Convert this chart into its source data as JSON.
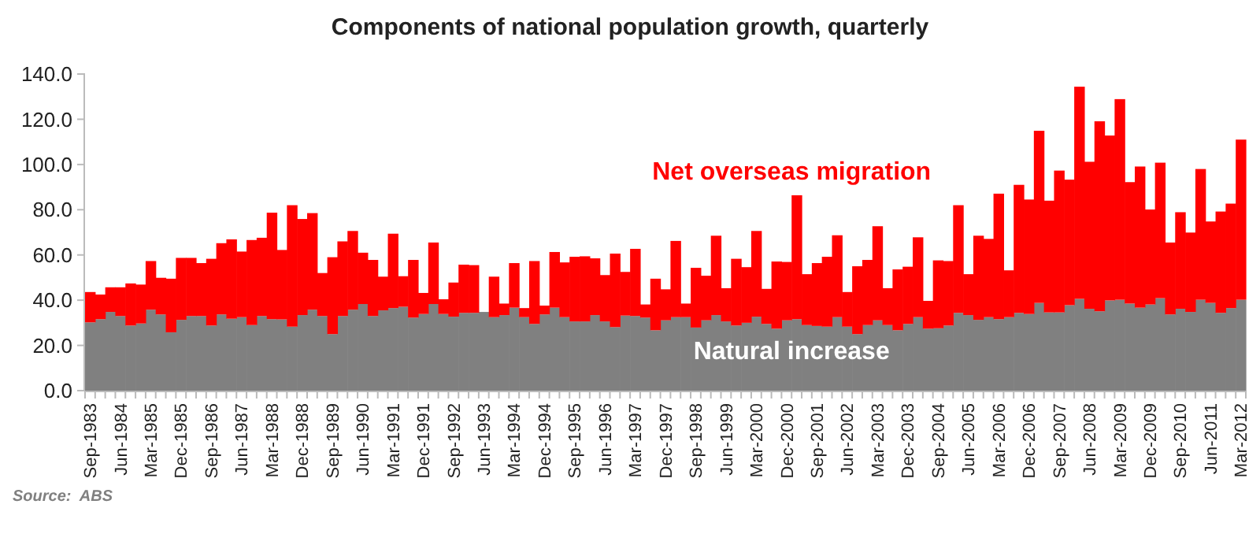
{
  "chart_data": {
    "type": "bar",
    "stacked": true,
    "title": "Components of national population growth, quarterly",
    "categories": [
      "Sep-1983",
      null,
      null,
      "Jun-1984",
      null,
      null,
      "Mar-1985",
      null,
      null,
      "Dec-1985",
      null,
      null,
      "Sep-1986",
      null,
      null,
      "Jun-1987",
      null,
      null,
      "Mar-1988",
      null,
      null,
      "Dec-1988",
      null,
      null,
      "Sep-1989",
      null,
      null,
      "Jun-1990",
      null,
      null,
      "Mar-1991",
      null,
      null,
      "Dec-1991",
      null,
      null,
      "Sep-1992",
      null,
      null,
      "Jun-1993",
      null,
      null,
      "Mar-1994",
      null,
      null,
      "Dec-1994",
      null,
      null,
      "Sep-1995",
      null,
      null,
      "Jun-1996",
      null,
      null,
      "Mar-1997",
      null,
      null,
      "Dec-1997",
      null,
      null,
      "Sep-1998",
      null,
      null,
      "Jun-1999",
      null,
      null,
      "Mar-2000",
      null,
      null,
      "Dec-2000",
      null,
      null,
      "Sep-2001",
      null,
      null,
      "Jun-2002",
      null,
      null,
      "Mar-2003",
      null,
      null,
      "Dec-2003",
      null,
      null,
      "Sep-2004",
      null,
      null,
      "Jun-2005",
      null,
      null,
      "Mar-2006",
      null,
      null,
      "Dec-2006",
      null,
      null,
      "Sep-2007",
      null,
      null,
      "Jun-2008",
      null,
      null,
      "Mar-2009",
      null,
      null,
      "Dec-2009",
      null,
      null,
      "Sep-2010",
      null,
      null,
      "Jun-2011",
      null,
      null,
      "Mar-2012"
    ],
    "series": [
      {
        "name": "Natural increase",
        "color": "#808080",
        "values": [
          30.2,
          31.6,
          34.8,
          33,
          28.8,
          29.7,
          35.8,
          33.7,
          25.8,
          31.3,
          33,
          33,
          28.8,
          33.7,
          31.8,
          32.5,
          29,
          33,
          31.6,
          31.5,
          28.3,
          33.4,
          35.8,
          33,
          25,
          33,
          35.8,
          38.3,
          33,
          35.5,
          36.5,
          37.1,
          32.3,
          33.9,
          38.3,
          33.9,
          32.7,
          34.4,
          34.4,
          34.8,
          32.5,
          33.4,
          36.7,
          32.5,
          29.5,
          33.7,
          36.7,
          32.5,
          30.6,
          30.6,
          33.4,
          30.6,
          28.1,
          33.2,
          33,
          32.3,
          26.7,
          31.1,
          32.5,
          32.5,
          27.9,
          31.1,
          33.4,
          30.6,
          28.8,
          30,
          32.7,
          29.5,
          27.4,
          31.1,
          31.6,
          29,
          28.6,
          28.3,
          32.5,
          28.3,
          25,
          29,
          31.1,
          29,
          26.7,
          29.5,
          32.5,
          27.4,
          27.6,
          28.8,
          34.4,
          33.4,
          31.3,
          32.5,
          31.6,
          32.5,
          34.4,
          33.9,
          38.8,
          34.6,
          34.6,
          37.8,
          40.6,
          36.2,
          35.1,
          39.9,
          40.2,
          38.5,
          36.7,
          38.1,
          40.9,
          33.7,
          36.2,
          34.8,
          40.2,
          38.8,
          34.4,
          36.5,
          40.2
        ]
      },
      {
        "name": "Net overseas migration",
        "color": "#ff0000",
        "values": [
          13.4,
          10.9,
          10.9,
          12.7,
          18.6,
          17.2,
          21.5,
          16.2,
          23.7,
          27.4,
          25.7,
          23.4,
          29.5,
          31.5,
          35.1,
          29,
          37.6,
          34.6,
          47.1,
          30.7,
          53.7,
          42.5,
          42.7,
          19,
          34,
          33,
          34.8,
          22.7,
          24.8,
          14.9,
          32.9,
          13.5,
          25.5,
          9.3,
          27.2,
          6.5,
          15.1,
          21.3,
          21.1,
          null,
          17.9,
          5.1,
          19.7,
          4,
          27.8,
          3.9,
          24.6,
          24.2,
          28.6,
          28.8,
          25.1,
          20.5,
          32.5,
          19.3,
          29.7,
          5.8,
          22.8,
          13.7,
          33.7,
          6,
          26.4,
          19.7,
          35.1,
          14.7,
          29.5,
          24.6,
          37.9,
          15.5,
          29.7,
          25.8,
          54.8,
          22.5,
          27.8,
          30.9,
          36.2,
          15.3,
          30,
          28.8,
          41.6,
          16.3,
          26.9,
          25.3,
          35.3,
          12.3,
          30,
          28.5,
          47.6,
          18.1,
          37.2,
          34.6,
          55.5,
          20.7,
          56.6,
          50.6,
          76.1,
          49.4,
          62.7,
          55.5,
          93.8,
          65,
          84,
          72.9,
          88.7,
          53.7,
          62.4,
          42,
          59.9,
          31.8,
          42.7,
          35.1,
          57.8,
          36,
          44.8,
          46.2,
          70.8
        ]
      }
    ],
    "ylim": [
      0,
      140
    ],
    "yticks": [
      {
        "value": 0,
        "label": "0.0"
      },
      {
        "value": 20,
        "label": "20.0"
      },
      {
        "value": 40,
        "label": "40.0"
      },
      {
        "value": 60,
        "label": "60.0"
      },
      {
        "value": 80,
        "label": "80.0"
      },
      {
        "value": 100,
        "label": "100.0"
      },
      {
        "value": 120,
        "label": "120.0"
      },
      {
        "value": 140,
        "label": "140.0"
      }
    ],
    "legend": false,
    "annotations": [
      "Source:  ABS"
    ]
  }
}
